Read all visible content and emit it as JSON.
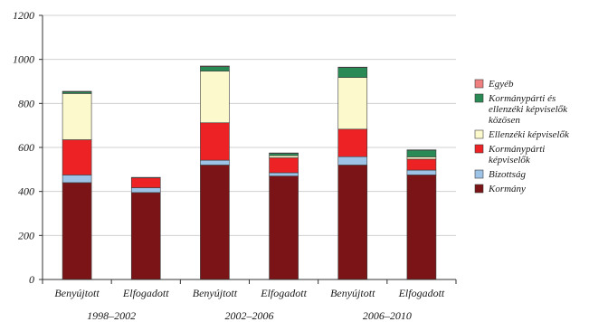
{
  "chart_data": {
    "type": "bar",
    "stacked": true,
    "categories": [
      "Benyújtott",
      "Elfogadott",
      "Benyújtott",
      "Elfogadott",
      "Benyújtott",
      "Elfogadott"
    ],
    "groups": [
      {
        "label": "1998–2002",
        "categories": [
          0,
          1
        ]
      },
      {
        "label": "2002–2006",
        "categories": [
          2,
          3
        ]
      },
      {
        "label": "2006–2010",
        "categories": [
          4,
          5
        ]
      }
    ],
    "series": [
      {
        "name": "Kormány",
        "legend_lines": [
          "Kormány"
        ],
        "color": "#7b1416",
        "values": [
          440,
          395,
          520,
          470,
          520,
          475
        ]
      },
      {
        "name": "Bizottság",
        "legend_lines": [
          "Bizottság"
        ],
        "color": "#9dc3e6",
        "values": [
          35,
          22,
          22,
          15,
          38,
          22
        ]
      },
      {
        "name": "Kormánypárti képviselők",
        "legend_lines": [
          "Kormánypárti",
          "képviselők"
        ],
        "color": "#ed2224",
        "values": [
          160,
          45,
          170,
          68,
          125,
          50
        ]
      },
      {
        "name": "Ellenzéki képviselők",
        "legend_lines": [
          "Ellenzéki képviselők"
        ],
        "color": "#fcfacd",
        "values": [
          210,
          0,
          235,
          10,
          235,
          10
        ]
      },
      {
        "name": "Kormánypárti és ellenzéki képviselők közösen",
        "legend_lines": [
          "Kormánypárti és",
          "ellenzéki képviselők",
          "közösen"
        ],
        "color": "#2a8a55",
        "values": [
          8,
          0,
          20,
          10,
          45,
          30
        ]
      },
      {
        "name": "Egyéb",
        "legend_lines": [
          "Egyéb"
        ],
        "color": "#f08080",
        "values": [
          2,
          2,
          3,
          2,
          2,
          2
        ]
      }
    ],
    "xlabel": "",
    "ylabel": "",
    "ylim": [
      0,
      1200
    ],
    "yticks": [
      0,
      200,
      400,
      600,
      800,
      1000,
      1200
    ],
    "ytick_labels": [
      "0",
      "200",
      "400",
      "600",
      "800",
      "1000",
      "1200"
    ],
    "grid": "horizontal",
    "legend": "right",
    "legend_order": [
      "Egyéb",
      "Kormánypárti és ellenzéki képviselők közösen",
      "Ellenzéki képviselők",
      "Kormánypárti képviselők",
      "Bizottság",
      "Kormány"
    ]
  }
}
